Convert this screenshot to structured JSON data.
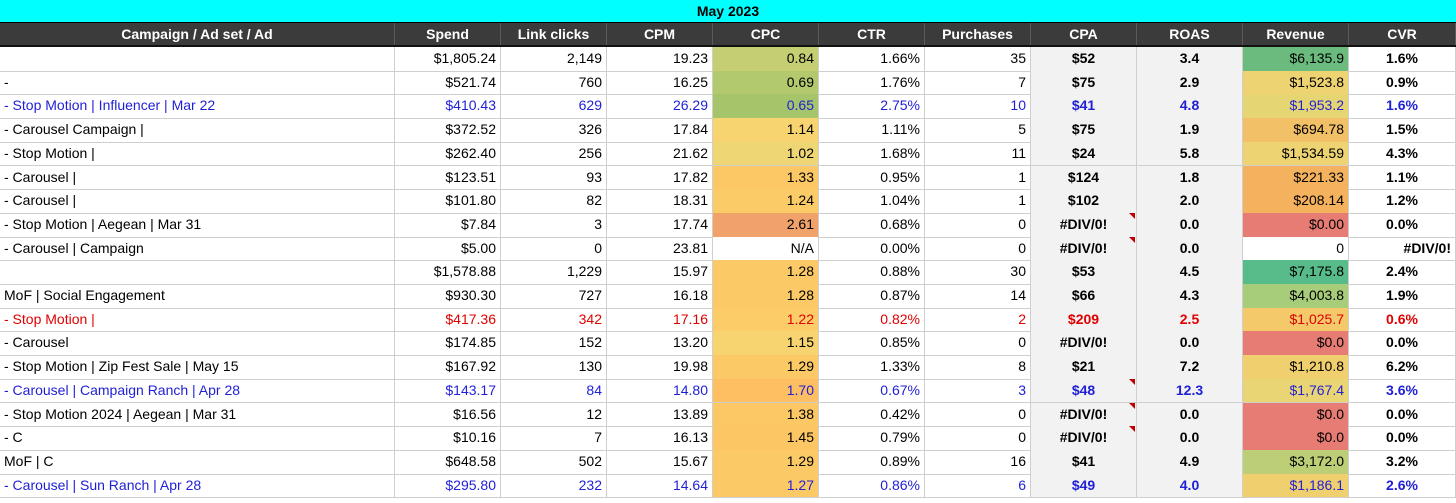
{
  "title": "May 2023",
  "columns": [
    "Campaign / Ad set / Ad",
    "Spend",
    "Link clicks",
    "CPM",
    "CPC",
    "CTR",
    "Purchases",
    "CPA",
    "ROAS",
    "Revenue",
    "CVR"
  ],
  "colors": {
    "header_bg": "#3b3b3b",
    "title_bg": "#00ffff",
    "blue_text": "#1f1fd6",
    "red_text": "#e00000"
  },
  "rows": [
    {
      "name": "",
      "bold_name": true,
      "color": "#000000",
      "spend": "$1,805.24",
      "clicks": "2,149",
      "cpm": "19.23",
      "cpc": "0.84",
      "cpc_bg": "#c5ce72",
      "ctr": "1.66%",
      "purchases": "35",
      "cpa": "$52",
      "cpa_flag": false,
      "roas": "3.4",
      "revenue": "$6,135.9",
      "rev_bg": "#6abb7d",
      "cvr": "1.6%"
    },
    {
      "name": "- ",
      "bold_name": false,
      "color": "#000000",
      "spend": "$521.74",
      "clicks": "760",
      "cpm": "16.25",
      "cpc": "0.69",
      "cpc_bg": "#b2c96e",
      "ctr": "1.76%",
      "purchases": "7",
      "cpa": "$75",
      "cpa_flag": false,
      "roas": "2.9",
      "revenue": "$1,523.8",
      "rev_bg": "#eed372",
      "cvr": "0.9%"
    },
    {
      "name": "- Stop Motion | Influencer | Mar 22",
      "bold_name": false,
      "color": "#1f1fd6",
      "spend": "$410.43",
      "clicks": "629",
      "cpm": "26.29",
      "cpc": "0.65",
      "cpc_bg": "#a6c56b",
      "ctr": "2.75%",
      "purchases": "10",
      "cpa": "$41",
      "cpa_flag": false,
      "roas": "4.8",
      "revenue": "$1,953.2",
      "rev_bg": "#e6d673",
      "cvr": "1.6%"
    },
    {
      "name": "- Carousel Campaign |",
      "bold_name": false,
      "color": "#000000",
      "spend": "$372.52",
      "clicks": "326",
      "cpm": "17.84",
      "cpc": "1.14",
      "cpc_bg": "#f8d470",
      "ctr": "1.11%",
      "purchases": "5",
      "cpa": "$75",
      "cpa_flag": false,
      "roas": "1.9",
      "revenue": "$694.78",
      "rev_bg": "#f2c067",
      "cvr": "1.5%"
    },
    {
      "name": "- Stop Motion |",
      "bold_name": false,
      "color": "#000000",
      "spend": "$262.40",
      "clicks": "256",
      "cpm": "21.62",
      "cpc": "1.02",
      "cpc_bg": "#efd675",
      "ctr": "1.68%",
      "purchases": "11",
      "cpa": "$24",
      "cpa_flag": false,
      "roas": "5.8",
      "revenue": "$1,534.59",
      "rev_bg": "#eed372",
      "cvr": "4.3%"
    },
    {
      "name": "- Carousel |",
      "bold_name": false,
      "color": "#000000",
      "spend": "$123.51",
      "clicks": "93",
      "cpm": "17.82",
      "cpc": "1.33",
      "cpc_bg": "#fcc865",
      "ctr": "0.95%",
      "purchases": "1",
      "cpa": "$124",
      "cpa_flag": false,
      "roas": "1.8",
      "revenue": "$221.33",
      "rev_bg": "#f4b25e",
      "cvr": "1.1%"
    },
    {
      "name": "- Carousel |",
      "bold_name": false,
      "color": "#000000",
      "spend": "$101.80",
      "clicks": "82",
      "cpm": "18.31",
      "cpc": "1.24",
      "cpc_bg": "#fbcb67",
      "ctr": "1.04%",
      "purchases": "1",
      "cpa": "$102",
      "cpa_flag": false,
      "roas": "2.0",
      "revenue": "$208.14",
      "rev_bg": "#f4b15e",
      "cvr": "1.2%"
    },
    {
      "name": "- Stop Motion | Aegean | Mar 31",
      "bold_name": false,
      "color": "#000000",
      "spend": "$7.84",
      "clicks": "3",
      "cpm": "17.74",
      "cpc": "2.61",
      "cpc_bg": "#f1a26b",
      "ctr": "0.68%",
      "purchases": "0",
      "cpa": "#DIV/0!",
      "cpa_flag": true,
      "roas": "0.0",
      "revenue": "$0.00",
      "rev_bg": "#e67c73",
      "cvr": "0.0%"
    },
    {
      "name": "- Carousel | Campaign",
      "bold_name": false,
      "color": "#000000",
      "spend": "$5.00",
      "clicks": "0",
      "cpm": "23.81",
      "cpc": "N/A",
      "cpc_bg": "#ffffff",
      "ctr": "0.00%",
      "purchases": "0",
      "cpa": "#DIV/0!",
      "cpa_flag": true,
      "roas": "0.0",
      "revenue": "0",
      "rev_bg": "#ffffff",
      "cvr": "#DIV/0!"
    },
    {
      "name": "",
      "bold_name": true,
      "color": "#000000",
      "spend": "$1,578.88",
      "clicks": "1,229",
      "cpm": "15.97",
      "cpc": "1.28",
      "cpc_bg": "#fbca66",
      "ctr": "0.88%",
      "purchases": "30",
      "cpa": "$53",
      "cpa_flag": false,
      "roas": "4.5",
      "revenue": "$7,175.8",
      "rev_bg": "#57bb8a",
      "cvr": "2.4%"
    },
    {
      "name": "MoF | Social Engagement",
      "bold_name": false,
      "color": "#000000",
      "spend": "$930.30",
      "clicks": "727",
      "cpm": "16.18",
      "cpc": "1.28",
      "cpc_bg": "#fbca66",
      "ctr": "0.87%",
      "purchases": "14",
      "cpa": "$66",
      "cpa_flag": false,
      "roas": "4.3",
      "revenue": "$4,003.8",
      "rev_bg": "#a8cd7a",
      "cvr": "1.9%"
    },
    {
      "name": "- Stop Motion |",
      "bold_name": false,
      "color": "#e00000",
      "spend": "$417.36",
      "clicks": "342",
      "cpm": "17.16",
      "cpc": "1.22",
      "cpc_bg": "#fbcc68",
      "ctr": "0.82%",
      "purchases": "2",
      "cpa": "$209",
      "cpa_flag": false,
      "roas": "2.5",
      "revenue": "$1,025.7",
      "rev_bg": "#f3c96a",
      "cvr": "0.6%"
    },
    {
      "name": "- Carousel",
      "bold_name": false,
      "color": "#000000",
      "spend": "$174.85",
      "clicks": "152",
      "cpm": "13.20",
      "cpc": "1.15",
      "cpc_bg": "#f8d470",
      "ctr": "0.85%",
      "purchases": "0",
      "cpa": "#DIV/0!",
      "cpa_flag": false,
      "roas": "0.0",
      "revenue": "$0.0",
      "rev_bg": "#e67c73",
      "cvr": "0.0%"
    },
    {
      "name": "- Stop Motion | Zip Fest Sale | May 15",
      "bold_name": false,
      "color": "#000000",
      "spend": "$167.92",
      "clicks": "130",
      "cpm": "19.98",
      "cpc": "1.29",
      "cpc_bg": "#fbca66",
      "ctr": "1.33%",
      "purchases": "8",
      "cpa": "$21",
      "cpa_flag": false,
      "roas": "7.2",
      "revenue": "$1,210.8",
      "rev_bg": "#f0cf6f",
      "cvr": "6.2%"
    },
    {
      "name": "- Carousel | Campaign Ranch | Apr 28",
      "bold_name": false,
      "color": "#1f1fd6",
      "spend": "$143.17",
      "clicks": "84",
      "cpm": "14.80",
      "cpc": "1.70",
      "cpc_bg": "#fdbf62",
      "ctr": "0.67%",
      "purchases": "3",
      "cpa": "$48",
      "cpa_flag": true,
      "roas": "12.3",
      "revenue": "$1,767.4",
      "rev_bg": "#ead575",
      "cvr": "3.6%"
    },
    {
      "name": "- Stop Motion 2024 | Aegean | Mar 31",
      "bold_name": false,
      "color": "#000000",
      "spend": "$16.56",
      "clicks": "12",
      "cpm": "13.89",
      "cpc": "1.38",
      "cpc_bg": "#fcc865",
      "ctr": "0.42%",
      "purchases": "0",
      "cpa": "#DIV/0!",
      "cpa_flag": true,
      "roas": "0.0",
      "revenue": "$0.0",
      "rev_bg": "#e67c73",
      "cvr": "0.0%"
    },
    {
      "name": "- C",
      "bold_name": false,
      "color": "#000000",
      "spend": "$10.16",
      "clicks": "7",
      "cpm": "16.13",
      "cpc": "1.45",
      "cpc_bg": "#fcc664",
      "ctr": "0.79%",
      "purchases": "0",
      "cpa": "#DIV/0!",
      "cpa_flag": true,
      "roas": "0.0",
      "revenue": "$0.0",
      "rev_bg": "#e67c73",
      "cvr": "0.0%"
    },
    {
      "name": "MoF | C",
      "bold_name": false,
      "color": "#000000",
      "spend": "$648.58",
      "clicks": "502",
      "cpm": "15.67",
      "cpc": "1.29",
      "cpc_bg": "#fbca66",
      "ctr": "0.89%",
      "purchases": "16",
      "cpa": "$41",
      "cpa_flag": false,
      "roas": "4.9",
      "revenue": "$3,172.0",
      "rev_bg": "#bccf77",
      "cvr": "3.2%"
    },
    {
      "name": "- Carousel | Sun Ranch | Apr 28",
      "bold_name": false,
      "color": "#1f1fd6",
      "spend": "$295.80",
      "clicks": "232",
      "cpm": "14.64",
      "cpc": "1.27",
      "cpc_bg": "#fbca66",
      "ctr": "0.86%",
      "purchases": "6",
      "cpa": "$49",
      "cpa_flag": false,
      "roas": "4.0",
      "revenue": "$1,186.1",
      "rev_bg": "#f0cf6f",
      "cvr": "2.6%"
    }
  ]
}
